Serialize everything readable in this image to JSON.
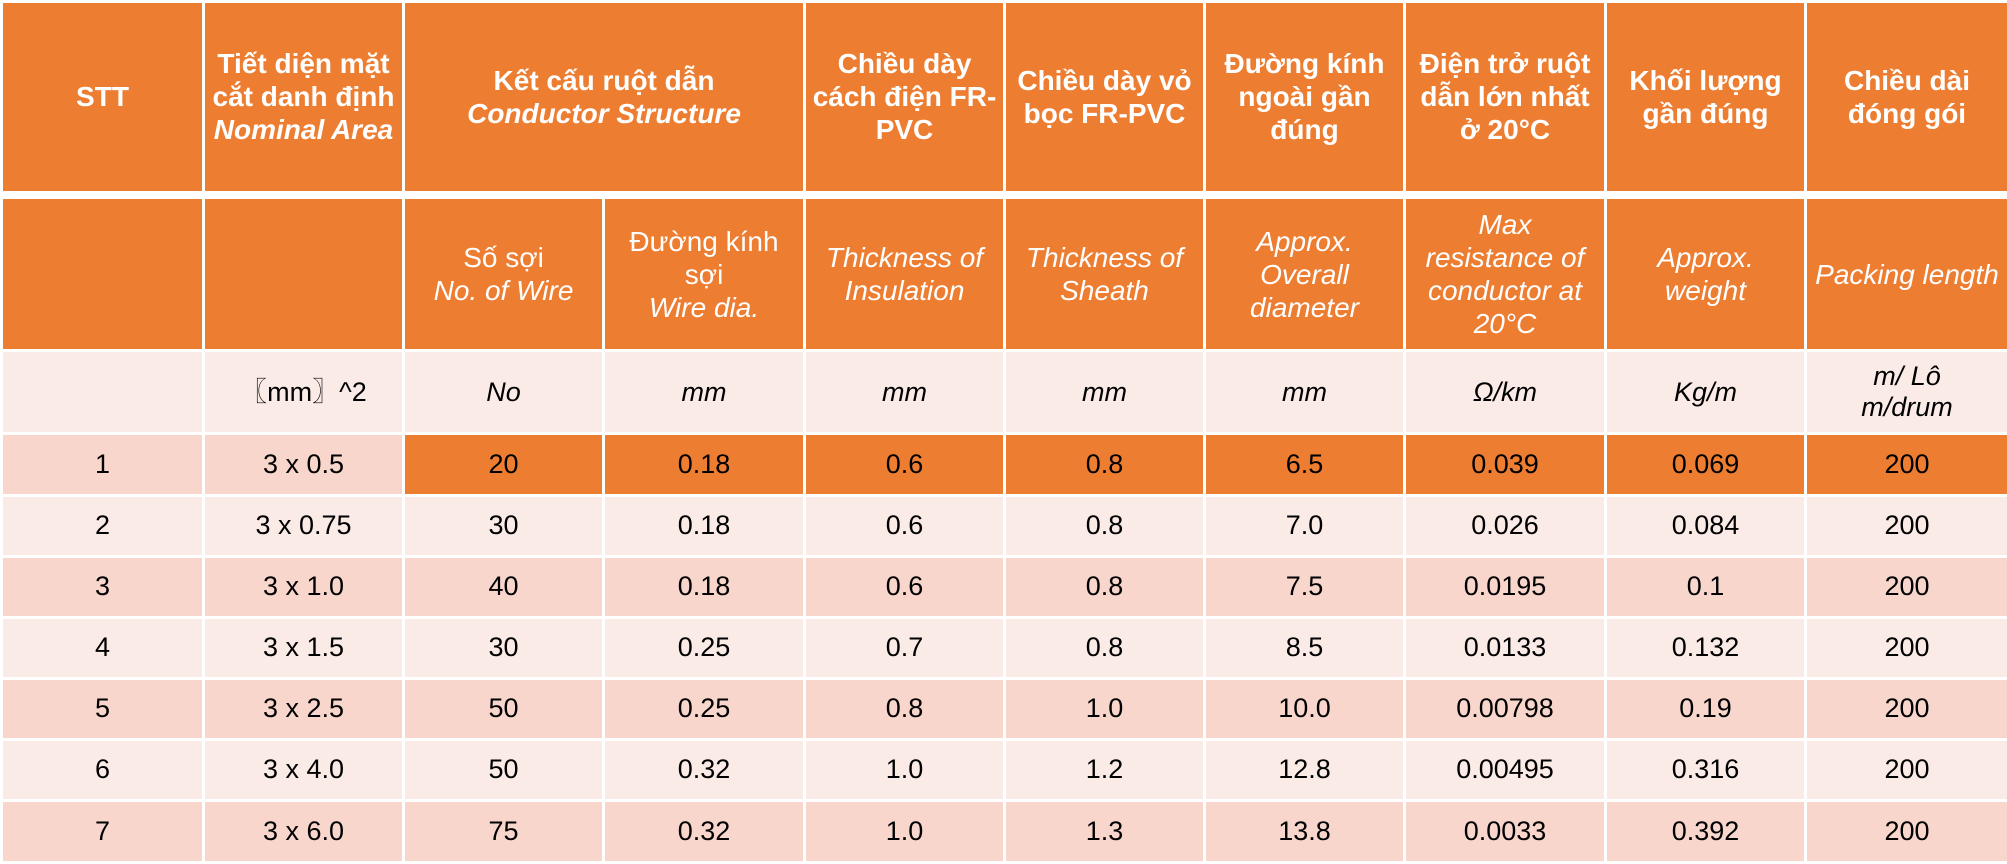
{
  "header": {
    "stt": "STT",
    "area_vi": "Tiết diện mặt cắt danh định",
    "area_en": "Nominal Area",
    "structure_vi": "Kết cấu ruột dẫn",
    "structure_en": "Conductor Structure",
    "ins_vi": "Chiều dày cách điện FR-PVC",
    "sheath_vi": "Chiều dày vỏ bọc FR-PVC",
    "dia_vi": "Đường kính ngoài gần đúng",
    "res_vi": "Điện trở ruột dẫn lớn nhất ở 20°C",
    "weight_vi": "Khối lượng gần đúng",
    "pack_vi": "Chiều dài đóng gói"
  },
  "subheader": {
    "wire_no_vi": "Số sợi",
    "wire_no_en": "No. of Wire",
    "wire_dia_vi": "Đường kính sợi",
    "wire_dia_en": "Wire dia.",
    "ins_en": "Thickness of Insulation",
    "sheath_en": "Thickness of Sheath",
    "dia_en": "Approx. Overall diameter",
    "res_en": "Max resistance of conductor at 20°C",
    "weight_en": "Approx. weight",
    "pack_en": "Packing length"
  },
  "units": {
    "area": "〖mm〗^2",
    "wire_no": "No",
    "wire_dia": "mm",
    "ins": "mm",
    "sheath": "mm",
    "dia": "mm",
    "res": "Ω/km",
    "weight": "Kg/m",
    "pack_1": "m/ Lô",
    "pack_2": "m/drum"
  },
  "rows": [
    {
      "stt": "1",
      "area": "3 x 0.5",
      "no": "20",
      "dia": "0.18",
      "ins": "0.6",
      "sheath": "0.8",
      "od": "6.5",
      "res": "0.039",
      "w": "0.069",
      "len": "200"
    },
    {
      "stt": "2",
      "area": "3 x 0.75",
      "no": "30",
      "dia": "0.18",
      "ins": "0.6",
      "sheath": "0.8",
      "od": "7.0",
      "res": "0.026",
      "w": "0.084",
      "len": "200"
    },
    {
      "stt": "3",
      "area": "3 x 1.0",
      "no": "40",
      "dia": "0.18",
      "ins": "0.6",
      "sheath": "0.8",
      "od": "7.5",
      "res": "0.0195",
      "w": "0.1",
      "len": "200"
    },
    {
      "stt": "4",
      "area": "3 x 1.5",
      "no": "30",
      "dia": "0.25",
      "ins": "0.7",
      "sheath": "0.8",
      "od": "8.5",
      "res": "0.0133",
      "w": "0.132",
      "len": "200"
    },
    {
      "stt": "5",
      "area": "3 x 2.5",
      "no": "50",
      "dia": "0.25",
      "ins": "0.8",
      "sheath": "1.0",
      "od": "10.0",
      "res": "0.00798",
      "w": "0.19",
      "len": "200"
    },
    {
      "stt": "6",
      "area": "3 x 4.0",
      "no": "50",
      "dia": "0.32",
      "ins": "1.0",
      "sheath": "1.2",
      "od": "12.8",
      "res": "0.00495",
      "w": "0.316",
      "len": "200"
    },
    {
      "stt": "7",
      "area": "3 x 6.0",
      "no": "75",
      "dia": "0.32",
      "ins": "1.0",
      "sheath": "1.3",
      "od": "13.8",
      "res": "0.0033",
      "w": "0.392",
      "len": "200"
    }
  ],
  "colors": {
    "header": "#ED7D31",
    "row_dark": "#F8D6CC",
    "row_light": "#FBEBE7",
    "border": "#FFFFFF"
  }
}
